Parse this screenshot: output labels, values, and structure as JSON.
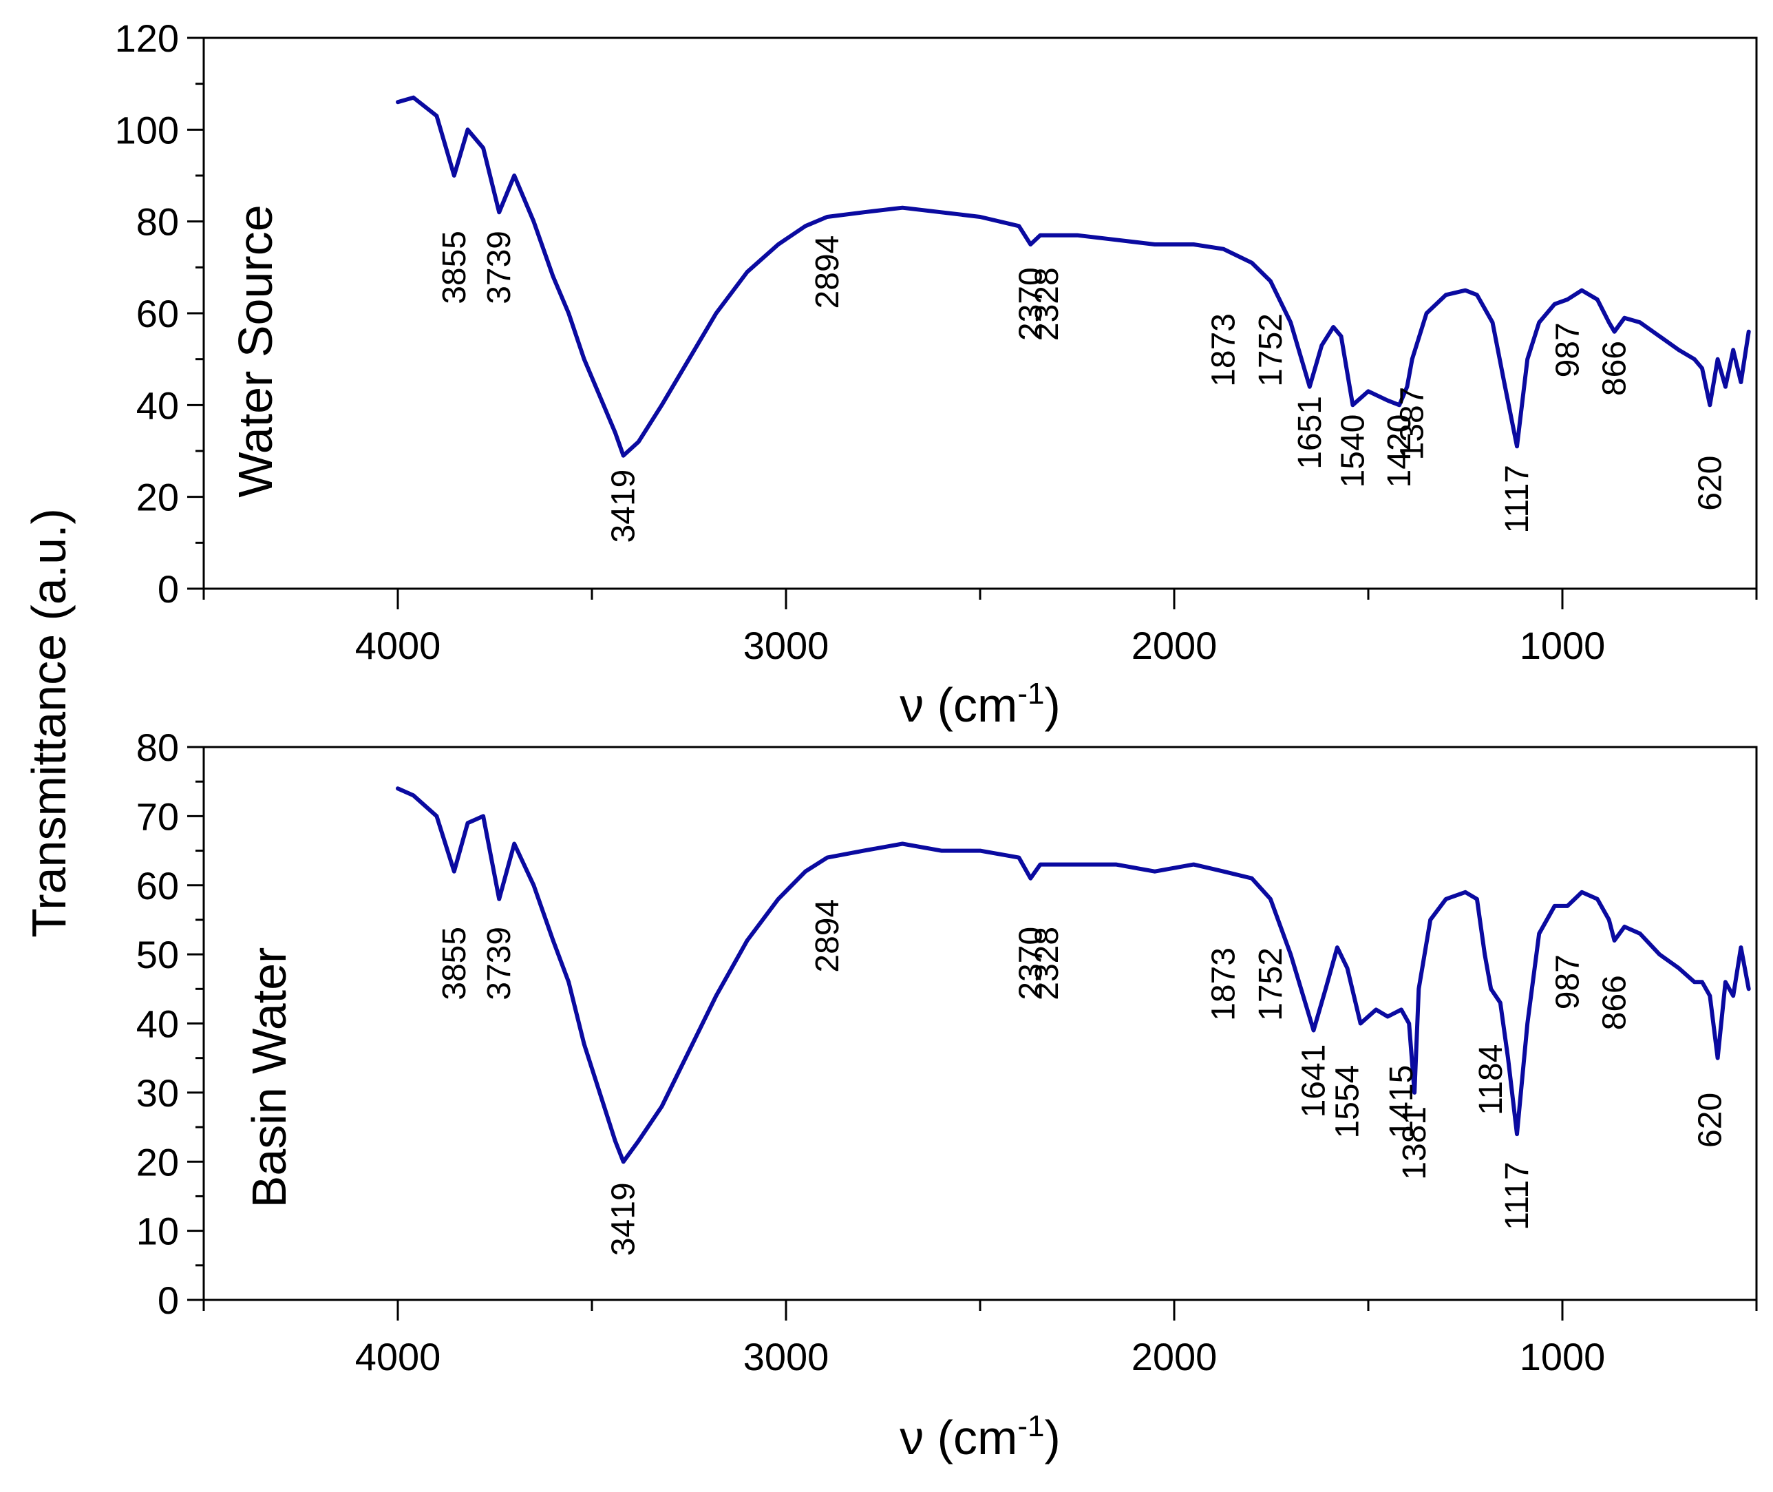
{
  "colors": {
    "series": "#0a0aa0",
    "axis": "#000000"
  },
  "chart_data": [
    {
      "type": "line",
      "panel": "top",
      "title": "Water Source",
      "xlabel": "ν (cm",
      "xlabel_sup": "-1",
      "xlabel_close": ")",
      "ylabel": "Transmittance (a.u.)",
      "xlim": [
        4500,
        500
      ],
      "ylim": [
        0,
        120
      ],
      "x_major_ticks": [
        4000,
        3000,
        2000,
        1000
      ],
      "x_minor_ticks": [
        4500,
        3500,
        2500,
        1500,
        500
      ],
      "x_tick_labels": [
        "4000",
        "3000",
        "2000",
        "1000"
      ],
      "y_ticks": [
        0,
        20,
        40,
        60,
        80,
        100,
        120
      ],
      "y_tick_labels": [
        "0",
        "20",
        "40",
        "60",
        "80",
        "100",
        "120"
      ],
      "y_minor_step": 10,
      "series": [
        {
          "name": "Water Source",
          "x": [
            4000,
            3960,
            3900,
            3855,
            3820,
            3780,
            3739,
            3700,
            3650,
            3600,
            3560,
            3520,
            3480,
            3440,
            3419,
            3380,
            3320,
            3250,
            3180,
            3100,
            3020,
            2950,
            2894,
            2800,
            2700,
            2600,
            2500,
            2400,
            2370,
            2345,
            2328,
            2250,
            2150,
            2050,
            1950,
            1873,
            1800,
            1752,
            1700,
            1651,
            1620,
            1590,
            1570,
            1540,
            1500,
            1450,
            1420,
            1400,
            1387,
            1350,
            1300,
            1250,
            1220,
            1180,
            1150,
            1117,
            1090,
            1060,
            1020,
            987,
            950,
            910,
            880,
            866,
            840,
            800,
            750,
            700,
            660,
            640,
            620,
            600,
            580,
            560,
            540,
            520
          ],
          "y": [
            106,
            107,
            103,
            90,
            100,
            96,
            82,
            90,
            80,
            68,
            60,
            50,
            42,
            34,
            29,
            32,
            40,
            50,
            60,
            69,
            75,
            79,
            81,
            82,
            83,
            82,
            81,
            79,
            75,
            77,
            77,
            77,
            76,
            75,
            75,
            74,
            71,
            67,
            58,
            44,
            53,
            57,
            55,
            40,
            43,
            41,
            40,
            44,
            50,
            60,
            64,
            65,
            64,
            58,
            45,
            31,
            50,
            58,
            62,
            63,
            65,
            63,
            58,
            56,
            59,
            58,
            55,
            52,
            50,
            48,
            40,
            50,
            44,
            52,
            45,
            56
          ]
        }
      ],
      "annotations": [
        {
          "x": 3855,
          "label": "3855",
          "y": 78
        },
        {
          "x": 3739,
          "label": "3739",
          "y": 78
        },
        {
          "x": 3419,
          "label": "3419",
          "y": 26
        },
        {
          "x": 2894,
          "label": "2894",
          "y": 77
        },
        {
          "x": 2370,
          "label": "2370",
          "y": 70
        },
        {
          "x": 2328,
          "label": "2328",
          "y": 70
        },
        {
          "x": 1873,
          "label": "1873",
          "y": 60
        },
        {
          "x": 1752,
          "label": "1752",
          "y": 60
        },
        {
          "x": 1651,
          "label": "1651",
          "y": 42
        },
        {
          "x": 1540,
          "label": "1540",
          "y": 38
        },
        {
          "x": 1420,
          "label": "1420",
          "y": 38
        },
        {
          "x": 1387,
          "label": "1387",
          "y": 44
        },
        {
          "x": 1117,
          "label": "1117",
          "y": 27
        },
        {
          "x": 987,
          "label": "987",
          "y": 58
        },
        {
          "x": 866,
          "label": "866",
          "y": 54
        },
        {
          "x": 620,
          "label": "620",
          "y": 29
        }
      ]
    },
    {
      "type": "line",
      "panel": "bottom",
      "title": "Basin Water",
      "xlabel": "ν (cm",
      "xlabel_sup": "-1",
      "xlabel_close": ")",
      "ylabel": "Transmittance (a.u.)",
      "xlim": [
        4500,
        500
      ],
      "ylim": [
        0,
        80
      ],
      "x_major_ticks": [
        4000,
        3000,
        2000,
        1000
      ],
      "x_minor_ticks": [
        4500,
        3500,
        2500,
        1500,
        500
      ],
      "x_tick_labels": [
        "4000",
        "3000",
        "2000",
        "1000"
      ],
      "y_ticks": [
        0,
        10,
        20,
        30,
        40,
        50,
        60,
        70,
        80
      ],
      "y_tick_labels": [
        "0",
        "10",
        "20",
        "30",
        "40",
        "50",
        "60",
        "70",
        "80"
      ],
      "y_minor_step": 5,
      "series": [
        {
          "name": "Basin Water",
          "x": [
            4000,
            3960,
            3900,
            3855,
            3820,
            3780,
            3739,
            3700,
            3650,
            3600,
            3560,
            3520,
            3480,
            3440,
            3419,
            3380,
            3320,
            3250,
            3180,
            3100,
            3020,
            2950,
            2894,
            2800,
            2700,
            2600,
            2500,
            2400,
            2370,
            2345,
            2328,
            2250,
            2150,
            2050,
            1950,
            1873,
            1800,
            1752,
            1700,
            1641,
            1610,
            1580,
            1554,
            1520,
            1480,
            1450,
            1415,
            1395,
            1381,
            1370,
            1340,
            1300,
            1250,
            1220,
            1200,
            1184,
            1160,
            1140,
            1117,
            1090,
            1060,
            1020,
            987,
            950,
            910,
            880,
            866,
            840,
            800,
            750,
            700,
            660,
            640,
            620,
            600,
            580,
            560,
            540,
            520
          ],
          "y": [
            74,
            73,
            70,
            62,
            69,
            70,
            58,
            66,
            60,
            52,
            46,
            37,
            30,
            23,
            20,
            23,
            28,
            36,
            44,
            52,
            58,
            62,
            64,
            65,
            66,
            65,
            65,
            64,
            61,
            63,
            63,
            63,
            63,
            62,
            63,
            62,
            61,
            58,
            50,
            39,
            45,
            51,
            48,
            40,
            42,
            41,
            42,
            40,
            30,
            45,
            55,
            58,
            59,
            58,
            50,
            45,
            43,
            35,
            24,
            40,
            53,
            57,
            57,
            59,
            58,
            55,
            52,
            54,
            53,
            50,
            48,
            46,
            46,
            44,
            35,
            46,
            44,
            51,
            45
          ]
        }
      ],
      "annotations": [
        {
          "x": 3855,
          "label": "3855",
          "y": 54
        },
        {
          "x": 3739,
          "label": "3739",
          "y": 54
        },
        {
          "x": 3419,
          "label": "3419",
          "y": 17
        },
        {
          "x": 2894,
          "label": "2894",
          "y": 58
        },
        {
          "x": 2370,
          "label": "2370",
          "y": 54
        },
        {
          "x": 2328,
          "label": "2328",
          "y": 54
        },
        {
          "x": 1873,
          "label": "1873",
          "y": 51
        },
        {
          "x": 1752,
          "label": "1752",
          "y": 51
        },
        {
          "x": 1641,
          "label": "1641",
          "y": 37
        },
        {
          "x": 1554,
          "label": "1554",
          "y": 34
        },
        {
          "x": 1415,
          "label": "1415",
          "y": 34
        },
        {
          "x": 1381,
          "label": "1381",
          "y": 28
        },
        {
          "x": 1184,
          "label": "1184",
          "y": 37
        },
        {
          "x": 1117,
          "label": "1117",
          "y": 20
        },
        {
          "x": 987,
          "label": "987",
          "y": 50
        },
        {
          "x": 866,
          "label": "866",
          "y": 47
        },
        {
          "x": 620,
          "label": "620",
          "y": 30
        }
      ]
    }
  ]
}
